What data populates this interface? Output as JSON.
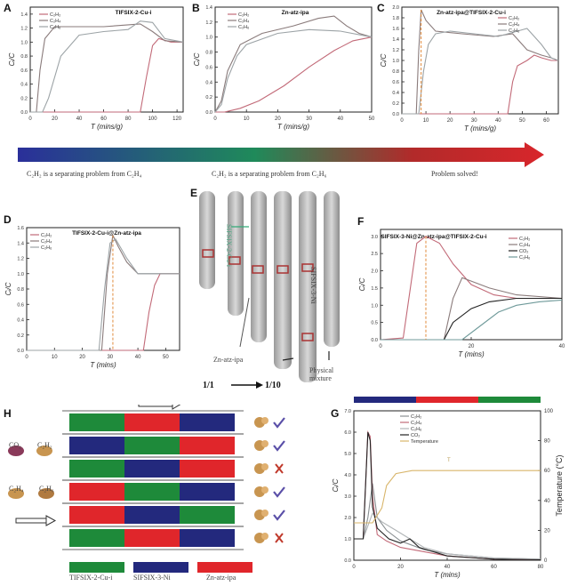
{
  "panels": {
    "A": "A",
    "B": "B",
    "C": "C",
    "D": "D",
    "E": "E",
    "F": "F",
    "G": "G",
    "H": "H"
  },
  "colors": {
    "c2h2": "#c26a78",
    "c2h4": "#8a7b7b",
    "c2h6": "#9ca3a6",
    "co2": "#222222",
    "temp": "#d8b56a",
    "green": "#1e8a3a",
    "blue": "#23297d",
    "red": "#e0262b"
  },
  "gradient_bar": {
    "captions": [
      "C₂H₂ is a separating problem from C₂H₄",
      "C₂H₂ is a separating problem from C₂H₆",
      "Problem solved!"
    ]
  },
  "column_E": {
    "ratio_start": "1/1",
    "ratio_end": "1/10",
    "labels": [
      "SIFSIX-2-Cu-i",
      "Zn-atz-ipa",
      "SIFSIX-3-Ni",
      "Physical mixture"
    ]
  },
  "panel_H": {
    "gases": [
      "CO₂",
      "C₂H₂",
      "C₂H₄",
      "C₂H₆"
    ],
    "legend": [
      "TIFSIX-2-Cu-i",
      "SIFSIX-3-Ni",
      "Zn-atz-ipa"
    ],
    "rows": [
      {
        "colors": [
          "green",
          "red",
          "blue"
        ],
        "result": "pass"
      },
      {
        "colors": [
          "blue",
          "green",
          "red"
        ],
        "result": "pass"
      },
      {
        "colors": [
          "green",
          "blue",
          "red"
        ],
        "result": "fail"
      },
      {
        "colors": [
          "red",
          "green",
          "blue"
        ],
        "result": "pass"
      },
      {
        "colors": [
          "red",
          "blue",
          "green"
        ],
        "result": "pass"
      },
      {
        "colors": [
          "green",
          "red",
          "blue"
        ],
        "result": "fail"
      }
    ]
  },
  "chart_data": [
    {
      "id": "A",
      "type": "line",
      "title": "TIFSIX-2-Cu-i",
      "xlabel": "T (mins/g)",
      "ylabel": "Cᵢ/C",
      "xlim": [
        0,
        125
      ],
      "ylim": [
        0,
        1.5
      ],
      "xticks": [
        0,
        20,
        40,
        60,
        80,
        100,
        120
      ],
      "yticks": [
        0,
        0.2,
        0.4,
        0.6,
        0.8,
        1.0,
        1.2,
        1.4
      ],
      "series": [
        {
          "name": "C₂H₂",
          "color": "#c26a78",
          "x": [
            0,
            90,
            95,
            100,
            105,
            115,
            125
          ],
          "y": [
            0,
            0,
            0.5,
            0.95,
            1.05,
            1.0,
            1.0
          ]
        },
        {
          "name": "C₂H₄",
          "color": "#8a7b7b",
          "x": [
            0,
            5,
            8,
            12,
            20,
            60,
            90,
            100,
            110,
            125
          ],
          "y": [
            0,
            0,
            0.6,
            1.05,
            1.22,
            1.22,
            1.26,
            1.15,
            1.02,
            1.0
          ]
        },
        {
          "name": "C₂H₆",
          "color": "#9ca3a6",
          "x": [
            0,
            10,
            15,
            25,
            40,
            60,
            80,
            90,
            100,
            110,
            125
          ],
          "y": [
            0,
            0,
            0.2,
            0.8,
            1.1,
            1.15,
            1.18,
            1.3,
            1.28,
            1.05,
            1.0
          ]
        }
      ]
    },
    {
      "id": "B",
      "type": "line",
      "title": "Zn-atz-ipa",
      "xlabel": "T (mins/g)",
      "ylabel": "Cᵢ/C",
      "xlim": [
        0,
        50
      ],
      "ylim": [
        0,
        1.4
      ],
      "xticks": [
        0,
        10,
        20,
        30,
        40,
        50
      ],
      "yticks": [
        0,
        0.2,
        0.4,
        0.6,
        0.8,
        1.0,
        1.2,
        1.4
      ],
      "series": [
        {
          "name": "C₂H₂",
          "color": "#c26a78",
          "x": [
            0,
            3,
            8,
            14,
            22,
            30,
            38,
            44,
            50
          ],
          "y": [
            0,
            0,
            0.05,
            0.15,
            0.35,
            0.6,
            0.82,
            0.95,
            1.0
          ]
        },
        {
          "name": "C₂H₄",
          "color": "#8a7b7b",
          "x": [
            0,
            2,
            4,
            8,
            15,
            25,
            33,
            38,
            42,
            46,
            50
          ],
          "y": [
            0,
            0.15,
            0.55,
            0.9,
            1.05,
            1.15,
            1.25,
            1.28,
            1.15,
            1.05,
            1.0
          ]
        },
        {
          "name": "C₂H₆",
          "color": "#9ca3a6",
          "x": [
            0,
            2,
            4,
            7,
            10,
            20,
            30,
            40,
            50
          ],
          "y": [
            0,
            0.1,
            0.45,
            0.75,
            0.9,
            1.05,
            1.1,
            1.08,
            1.0
          ]
        }
      ]
    },
    {
      "id": "C",
      "type": "line",
      "title": "Zn-atz-ipa@TIFSIX-2-Cu-i",
      "xlabel": "T (mins/g)",
      "ylabel": "Cᵢ/C",
      "xlim": [
        0,
        65
      ],
      "ylim": [
        0,
        2.0
      ],
      "xticks": [
        0,
        10,
        20,
        30,
        40,
        50,
        60
      ],
      "yticks": [
        0,
        0.2,
        0.4,
        0.6,
        0.8,
        1.0,
        1.2,
        1.4,
        1.6,
        1.8,
        2.0
      ],
      "series": [
        {
          "name": "C₂H₂",
          "color": "#c26a78",
          "x": [
            0,
            44,
            46,
            48,
            52,
            55,
            58,
            62,
            65
          ],
          "y": [
            0,
            0,
            0.6,
            0.9,
            1.0,
            1.1,
            1.05,
            1.0,
            1.0
          ]
        },
        {
          "name": "C₂H₄",
          "color": "#8a7b7b",
          "x": [
            0,
            6,
            7,
            8,
            10,
            14,
            25,
            38,
            46,
            52,
            58,
            62,
            65
          ],
          "y": [
            0,
            0,
            1.2,
            1.95,
            1.75,
            1.55,
            1.5,
            1.45,
            1.5,
            1.2,
            1.1,
            1.05,
            1.0
          ]
        },
        {
          "name": "C₂H₆",
          "color": "#9ca3a6",
          "x": [
            0,
            7,
            9,
            11,
            14,
            20,
            30,
            40,
            48,
            52,
            58,
            62,
            65
          ],
          "y": [
            0,
            0,
            0.8,
            1.3,
            1.5,
            1.55,
            1.5,
            1.45,
            1.55,
            1.6,
            1.3,
            1.05,
            1.0
          ]
        }
      ]
    },
    {
      "id": "D",
      "type": "line",
      "title": "TIFSIX-2-Cu-i@Zn-atz-ipa",
      "xlabel": "T (mins)",
      "ylabel": "Cᵢ/C",
      "xlim": [
        0,
        55
      ],
      "ylim": [
        0,
        1.6
      ],
      "xticks": [
        0,
        10,
        20,
        30,
        40,
        50
      ],
      "yticks": [
        0,
        0.2,
        0.4,
        0.6,
        0.8,
        1.0,
        1.2,
        1.4,
        1.6
      ],
      "series": [
        {
          "name": "C₂H₂",
          "color": "#c26a78",
          "x": [
            0,
            42,
            44,
            46,
            48,
            55
          ],
          "y": [
            0,
            0,
            0.5,
            0.85,
            1.0,
            1.0
          ]
        },
        {
          "name": "C₂H₄",
          "color": "#8a7b7b",
          "x": [
            0,
            27,
            29,
            31,
            33,
            36,
            40,
            44,
            55
          ],
          "y": [
            0,
            0,
            1.0,
            1.5,
            1.35,
            1.15,
            1.0,
            1.0,
            1.0
          ]
        },
        {
          "name": "C₂H₆",
          "color": "#9ca3a6",
          "x": [
            0,
            26,
            28,
            30,
            32,
            36,
            40,
            45,
            55
          ],
          "y": [
            0,
            0,
            0.8,
            1.4,
            1.45,
            1.2,
            1.0,
            1.0,
            1.0
          ]
        }
      ]
    },
    {
      "id": "F",
      "type": "line",
      "title": "SIFSIX-3-Ni@Zn-atz-ipa@TIFSIX-2-Cu-i",
      "xlabel": "T (mins)",
      "ylabel": "Cᵢ/C",
      "xlim": [
        0,
        40
      ],
      "ylim": [
        0,
        3.2
      ],
      "xticks": [
        0,
        20,
        40
      ],
      "yticks": [
        0,
        0.5,
        1.0,
        1.5,
        2.0,
        2.5,
        3.0
      ],
      "series": [
        {
          "name": "C₂H₂",
          "color": "#c26a78",
          "x": [
            0,
            5,
            8,
            10,
            13,
            16,
            20,
            25,
            30,
            40
          ],
          "y": [
            0,
            0.05,
            2.8,
            3.0,
            2.8,
            2.2,
            1.6,
            1.3,
            1.2,
            1.2
          ]
        },
        {
          "name": "C₂H₄",
          "color": "#8a7b7b",
          "x": [
            0,
            14,
            16,
            18,
            20,
            24,
            30,
            40
          ],
          "y": [
            0,
            0,
            1.2,
            1.8,
            1.7,
            1.5,
            1.3,
            1.2
          ]
        },
        {
          "name": "CO₂",
          "color": "#222222",
          "x": [
            0,
            14,
            16,
            20,
            24,
            30,
            40
          ],
          "y": [
            0,
            0,
            0.5,
            0.9,
            1.1,
            1.2,
            1.2
          ]
        },
        {
          "name": "C₂H₆",
          "color": "#6f9a9a",
          "x": [
            0,
            18,
            22,
            26,
            30,
            35,
            40
          ],
          "y": [
            0,
            0,
            0.4,
            0.8,
            1.0,
            1.1,
            1.15
          ]
        }
      ]
    },
    {
      "id": "G",
      "type": "line",
      "title": "",
      "xlabel": "T (mins)",
      "ylabel": "Cᵢ/C",
      "y2label": "Temperature (°C)",
      "xlim": [
        0,
        80
      ],
      "ylim": [
        0,
        7
      ],
      "y2lim": [
        0,
        100
      ],
      "xticks": [
        0,
        20,
        40,
        60,
        80
      ],
      "yticks": [
        0,
        1,
        2,
        3,
        4,
        5,
        6,
        7
      ],
      "y2ticks": [
        0,
        20,
        40,
        60,
        80,
        100
      ],
      "series": [
        {
          "name": "C₂H₂",
          "color": "#8a8f92",
          "x": [
            0,
            4,
            6,
            8,
            10,
            14,
            20,
            25,
            30,
            40,
            60,
            80
          ],
          "y": [
            1.0,
            1.0,
            2.0,
            3.6,
            2.0,
            1.4,
            0.9,
            0.7,
            0.5,
            0.3,
            0.1,
            0.05
          ]
        },
        {
          "name": "C₂H₄",
          "color": "#c26a78",
          "x": [
            0,
            4,
            6,
            7,
            8,
            10,
            14,
            20,
            30,
            40,
            60,
            80
          ],
          "y": [
            1.0,
            1.0,
            6.0,
            5.8,
            3.0,
            1.2,
            0.9,
            0.6,
            0.4,
            0.2,
            0.05,
            0.02
          ]
        },
        {
          "name": "C₂H₆",
          "color": "#b0b4b6",
          "x": [
            0,
            4,
            8,
            12,
            18,
            24,
            30,
            40,
            60,
            80
          ],
          "y": [
            1.0,
            1.0,
            2.2,
            1.8,
            1.4,
            1.0,
            0.6,
            0.3,
            0.1,
            0.05
          ]
        },
        {
          "name": "CO₂",
          "color": "#222222",
          "x": [
            0,
            4,
            6,
            7,
            8,
            10,
            15,
            20,
            24,
            28,
            40,
            60,
            80
          ],
          "y": [
            1.0,
            1.0,
            6.0,
            5.6,
            2.5,
            1.5,
            1.0,
            0.8,
            1.0,
            0.6,
            0.2,
            0.05,
            0.02
          ]
        },
        {
          "name": "Temperature",
          "color": "#d8b56a",
          "axis": "right",
          "x": [
            0,
            8,
            12,
            14,
            18,
            25,
            40,
            60,
            80
          ],
          "y": [
            25,
            25,
            35,
            50,
            58,
            60,
            60,
            60,
            60
          ]
        }
      ],
      "annotation": "T"
    }
  ]
}
